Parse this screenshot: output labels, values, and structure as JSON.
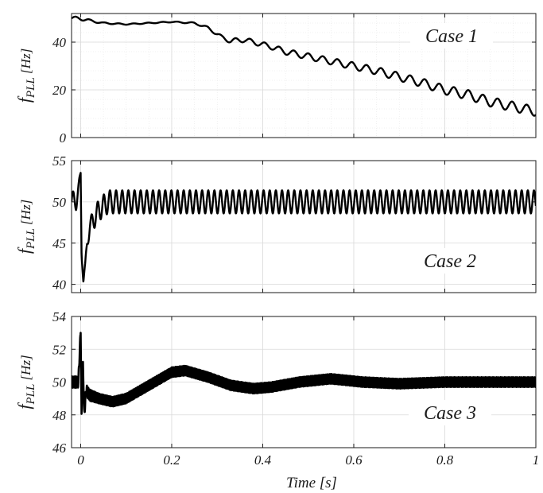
{
  "chart_data": [
    {
      "type": "line",
      "title": "Case 1",
      "ylabel": "f_PLL [Hz]",
      "ylabel_parts": {
        "main": "f",
        "sub": "PLL",
        "unit": " [Hz]"
      },
      "xlabel": "",
      "xlim": [
        -0.02,
        1
      ],
      "ylim": [
        0,
        52
      ],
      "yticks": [
        0,
        20,
        40
      ],
      "ytick_labels": [
        "0",
        "20",
        "40"
      ],
      "xticks": [
        0,
        0.2,
        0.4,
        0.6,
        0.8,
        1
      ],
      "xtick_labels": [],
      "grid": true,
      "minor_grid": true,
      "series": [
        {
          "x": [
            -0.02,
            0.0,
            0.02,
            0.05,
            0.1,
            0.15,
            0.2,
            0.25,
            0.28,
            0.31,
            0.33,
            0.36,
            0.38,
            0.42,
            0.45,
            0.5,
            0.55,
            0.6,
            0.65,
            0.7,
            0.75,
            0.8,
            0.85,
            0.9,
            0.95,
            1.0
          ],
          "y": [
            50,
            50,
            49,
            48,
            47.5,
            48,
            48.5,
            48,
            46,
            42,
            40.5,
            41,
            40,
            38,
            36,
            34,
            32,
            30,
            28,
            25.5,
            23,
            20,
            18,
            15,
            13,
            11
          ],
          "osc_amp": [
            0.6,
            0.8,
            0.5,
            0.3,
            0.2,
            0.2,
            0.2,
            0.3,
            0.5,
            0.8,
            1.0,
            1.0,
            1.0,
            1.1,
            1.2,
            1.3,
            1.4,
            1.5,
            1.6,
            1.7,
            1.8,
            1.9,
            2.0,
            2.0,
            2.0,
            2.0
          ],
          "osc_period": 0.032
        }
      ]
    },
    {
      "type": "line",
      "title": "Case 2",
      "ylabel": "f_PLL [Hz]",
      "ylabel_parts": {
        "main": "f",
        "sub": "PLL",
        "unit": " [Hz]"
      },
      "xlabel": "",
      "xlim": [
        -0.02,
        1
      ],
      "ylim": [
        39,
        55
      ],
      "yticks": [
        40,
        45,
        50,
        55
      ],
      "ytick_labels": [
        "40",
        "45",
        "50",
        "55"
      ],
      "xticks": [
        0,
        0.2,
        0.4,
        0.6,
        0.8,
        1
      ],
      "xtick_labels": [],
      "grid": true,
      "minor_grid": false,
      "series": [
        {
          "x": [
            -0.02,
            -0.01,
            -0.004,
            0.0,
            0.002,
            0.006,
            0.01,
            0.014,
            0.02,
            0.03,
            0.04,
            0.06,
            0.1,
            1.0
          ],
          "y": [
            50,
            50.2,
            51.5,
            53.5,
            44,
            40.5,
            42,
            45,
            47,
            48,
            49,
            50,
            50,
            50
          ],
          "osc_amp": [
            1.2,
            1.2,
            1.0,
            0.5,
            0.5,
            0.5,
            0.6,
            0.8,
            1.0,
            1.2,
            1.3,
            1.4,
            1.4,
            1.4
          ],
          "osc_period": 0.0135
        }
      ]
    },
    {
      "type": "line",
      "title": "Case 3",
      "ylabel": "f_PLL [Hz]",
      "ylabel_parts": {
        "main": "f",
        "sub": "PLL",
        "unit": " [Hz]"
      },
      "xlabel": "Time [s]",
      "xlim": [
        -0.02,
        1
      ],
      "ylim": [
        46,
        54
      ],
      "yticks": [
        46,
        48,
        50,
        52,
        54
      ],
      "ytick_labels": [
        "46",
        "48",
        "50",
        "52",
        "54"
      ],
      "xticks": [
        0,
        0.2,
        0.4,
        0.6,
        0.8,
        1
      ],
      "xtick_labels": [
        "0",
        "0.2",
        "0.4",
        "0.6",
        "0.8",
        "1"
      ],
      "grid": true,
      "minor_grid": false,
      "series": [
        {
          "x": [
            -0.02,
            -0.005,
            0.0,
            0.002,
            0.005,
            0.008,
            0.012,
            0.02,
            0.04,
            0.07,
            0.1,
            0.15,
            0.2,
            0.23,
            0.28,
            0.33,
            0.38,
            0.42,
            0.48,
            0.55,
            0.62,
            0.7,
            0.8,
            0.9,
            1.0
          ],
          "y": [
            50,
            50,
            53.2,
            47.8,
            51.2,
            48.0,
            49.5,
            49.2,
            49.0,
            48.8,
            49.0,
            49.8,
            50.6,
            50.7,
            50.3,
            49.8,
            49.6,
            49.7,
            50.0,
            50.2,
            50.0,
            49.9,
            50.0,
            50.0,
            50.0
          ],
          "osc_amp": [
            0.35,
            0.35,
            0.2,
            0.2,
            0.2,
            0.2,
            0.35,
            0.35,
            0.3,
            0.3,
            0.3,
            0.3,
            0.3,
            0.3,
            0.3,
            0.3,
            0.3,
            0.3,
            0.3,
            0.3,
            0.3,
            0.3,
            0.3,
            0.3,
            0.3
          ],
          "osc_period": 0.003
        }
      ]
    }
  ]
}
